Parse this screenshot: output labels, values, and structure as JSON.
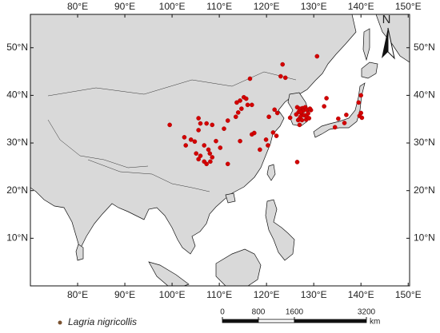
{
  "map": {
    "xlim": [
      70,
      150.3
    ],
    "ylim": [
      0,
      57
    ],
    "lon_ticks": [
      {
        "value": 80,
        "label": "80°E"
      },
      {
        "value": 90,
        "label": "90°E"
      },
      {
        "value": 100,
        "label": "100°E"
      },
      {
        "value": 110,
        "label": "110°E"
      },
      {
        "value": 120,
        "label": "120°E"
      },
      {
        "value": 130,
        "label": "130°E"
      },
      {
        "value": 140,
        "label": "140°E"
      },
      {
        "value": 150,
        "label": "150°E"
      }
    ],
    "lat_ticks": [
      {
        "value": 10,
        "label": "10°N"
      },
      {
        "value": 20,
        "label": "20°N"
      },
      {
        "value": 30,
        "label": "30°N"
      },
      {
        "value": 40,
        "label": "40°N"
      },
      {
        "value": 50,
        "label": "50°N"
      }
    ],
    "north": "N",
    "legend": {
      "label": "Lagria nigricollis",
      "color": "#7a5230"
    },
    "points": {
      "color": "#d40000",
      "lon": [
        99.5,
        105.6,
        106,
        105.6,
        107.3,
        108.5,
        102.6,
        104,
        102.9,
        104.8,
        106.8,
        107.7,
        105.1,
        106,
        108,
        105.6,
        106.8,
        107.3,
        108.1,
        108.5,
        109.3,
        111,
        111.8,
        113.5,
        114,
        114.4,
        115.2,
        115.7,
        113.7,
        114.7,
        116,
        116.9,
        116.5,
        110.2,
        111.8,
        114.4,
        116.9,
        117.4,
        119.9,
        120.3,
        118.6,
        121.4,
        123,
        124,
        123.4,
        130.7,
        121.7,
        122.3,
        125,
        127,
        128.4,
        127.6,
        129.4,
        132.2,
        132.7,
        135.2,
        136.5,
        136.9,
        134.5,
        126.5,
        120.5,
        122.1,
        139.7,
        140,
        140.2,
        139.5,
        140,
        126.5,
        127,
        126.8,
        127.5,
        128,
        127.2,
        126.9,
        128.5,
        129,
        127.8,
        128.2,
        126.7,
        127.5,
        128.8,
        126.3,
        127.3,
        128.5,
        129.2
      ],
      "lat": [
        33.8,
        35.2,
        34.1,
        32.7,
        34.1,
        33.8,
        31.2,
        30.7,
        29.5,
        30.3,
        29.5,
        28.6,
        27.8,
        27.3,
        27.8,
        26.6,
        26.1,
        25.6,
        26.1,
        27,
        30.4,
        33,
        34.7,
        35.5,
        36.4,
        38.9,
        39.6,
        39.3,
        38.5,
        37.2,
        38,
        38,
        43.5,
        29,
        25.6,
        30.4,
        31.8,
        32.1,
        30.7,
        29.5,
        28.6,
        32.2,
        44,
        43.7,
        46.5,
        48.2,
        37,
        36.3,
        35.3,
        33.8,
        34.9,
        37.3,
        36.9,
        37.7,
        39.4,
        35.1,
        34.2,
        35.9,
        33.3,
        26,
        35.5,
        31.5,
        35.7,
        36.3,
        35.3,
        38.5,
        40,
        37.5,
        37.2,
        36.5,
        36,
        35.8,
        35.5,
        35,
        35.5,
        35.2,
        36.8,
        37.5,
        34.8,
        34.8,
        36.2,
        36,
        36.5,
        37,
        37.2
      ]
    },
    "scale": {
      "ticks": [
        0,
        800,
        1600,
        3200
      ],
      "unit": "km"
    }
  }
}
